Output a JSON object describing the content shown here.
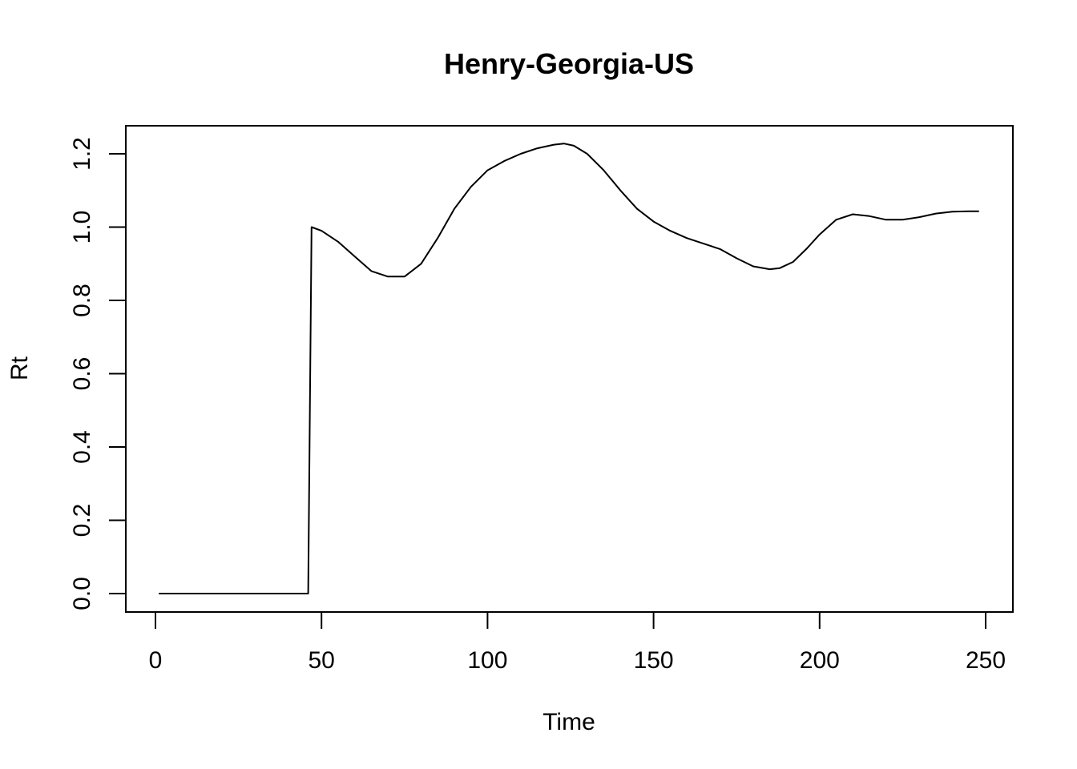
{
  "chart_data": {
    "type": "line",
    "title": "Henry-Georgia-US",
    "xlabel": "Time",
    "ylabel": "Rt",
    "xlim": [
      0,
      250
    ],
    "ylim": [
      0,
      1.2
    ],
    "x_ticks": [
      0,
      50,
      100,
      150,
      200,
      250
    ],
    "x_tick_labels": [
      "0",
      "50",
      "100",
      "150",
      "200",
      "250"
    ],
    "y_ticks": [
      0.0,
      0.2,
      0.4,
      0.6,
      0.8,
      1.0,
      1.2
    ],
    "y_tick_labels": [
      "0.0",
      "0.2",
      "0.4",
      "0.6",
      "0.8",
      "1.0",
      "1.2"
    ],
    "grid": false,
    "series": [
      {
        "color": "#000000",
        "x": [
          1,
          46,
          47,
          50,
          55,
          60,
          65,
          70,
          75,
          80,
          85,
          90,
          95,
          100,
          105,
          110,
          115,
          120,
          123,
          126,
          130,
          135,
          140,
          145,
          150,
          155,
          160,
          165,
          170,
          175,
          180,
          185,
          188,
          192,
          196,
          200,
          205,
          210,
          215,
          220,
          225,
          230,
          235,
          240,
          245,
          248
        ],
        "y": [
          0.0,
          0.0,
          1.0,
          0.99,
          0.96,
          0.92,
          0.88,
          0.865,
          0.865,
          0.9,
          0.97,
          1.05,
          1.11,
          1.155,
          1.18,
          1.2,
          1.215,
          1.225,
          1.228,
          1.222,
          1.2,
          1.155,
          1.1,
          1.05,
          1.015,
          0.99,
          0.97,
          0.955,
          0.94,
          0.915,
          0.893,
          0.885,
          0.888,
          0.905,
          0.94,
          0.98,
          1.02,
          1.035,
          1.03,
          1.02,
          1.02,
          1.027,
          1.037,
          1.042,
          1.043,
          1.043
        ]
      }
    ]
  }
}
